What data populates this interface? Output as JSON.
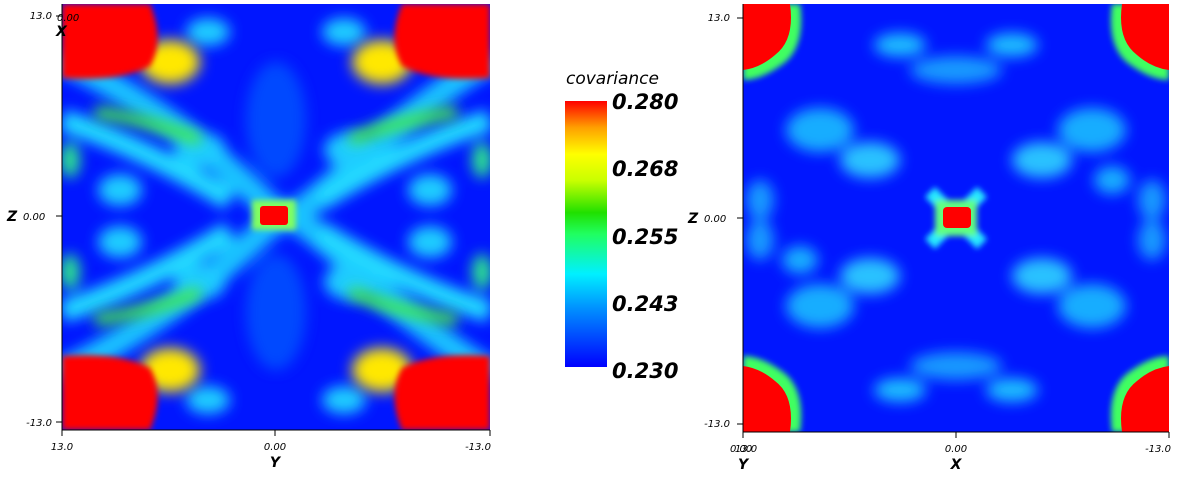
{
  "chart_data": [
    {
      "type": "heatmap",
      "panel": "left",
      "xlabel": "Y",
      "ylabel": "Z",
      "corner_label": "X",
      "x_ticks": [
        "13.0",
        "0.00",
        "-13.0"
      ],
      "y_ticks": [
        "13.0",
        "0.00",
        "-13.0"
      ],
      "corner_value": "0.00",
      "xlim": [
        13.0,
        -13.0
      ],
      "ylim": [
        -13.0,
        13.0
      ],
      "features": [
        {
          "x": 0,
          "y": 0,
          "value": 0.28,
          "shape": "square"
        },
        {
          "x": 11,
          "y": 11,
          "value": 0.28,
          "shape": "corner"
        },
        {
          "x": -11,
          "y": 11,
          "value": 0.28,
          "shape": "corner"
        },
        {
          "x": 11,
          "y": -11,
          "value": 0.28,
          "shape": "corner"
        },
        {
          "x": -11,
          "y": -11,
          "value": 0.28,
          "shape": "corner"
        }
      ]
    },
    {
      "type": "heatmap",
      "panel": "right",
      "xlabel": "X",
      "ylabel": "Z",
      "corner_label": "Y",
      "x_ticks": [
        "13.0",
        "0.00",
        "-13.0"
      ],
      "y_ticks": [
        "13.0",
        "0.00",
        "-13.0"
      ],
      "corner_value": "0.00",
      "xlim": [
        13.0,
        -13.0
      ],
      "ylim": [
        -13.0,
        13.0
      ],
      "features": [
        {
          "x": 0,
          "y": 0,
          "value": 0.28,
          "shape": "square"
        },
        {
          "x": 12,
          "y": 12,
          "value": 0.28,
          "shape": "corner"
        },
        {
          "x": -12,
          "y": 12,
          "value": 0.28,
          "shape": "corner"
        },
        {
          "x": 12,
          "y": -12,
          "value": 0.28,
          "shape": "corner"
        },
        {
          "x": -12,
          "y": -12,
          "value": 0.28,
          "shape": "corner"
        }
      ]
    }
  ],
  "colorbar": {
    "title": "covariance",
    "labels": [
      "0.280",
      "0.268",
      "0.255",
      "0.243",
      "0.230"
    ],
    "range": [
      0.23,
      0.28
    ],
    "colors": [
      "#0000ff",
      "#00e0ff",
      "#00e020",
      "#ffff00",
      "#ff0000"
    ]
  }
}
